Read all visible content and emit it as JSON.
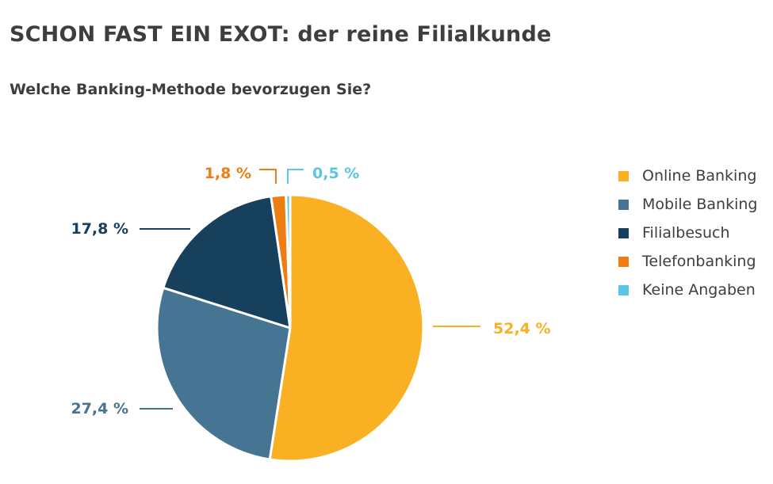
{
  "header": {
    "title": "SCHON FAST EIN EXOT: der reine Filialkunde",
    "subtitle": "Welche Banking-Methode bevorzugen Sie?"
  },
  "chart_data": {
    "type": "pie",
    "title": "SCHON FAST EIN EXOT: der reine Filialkunde",
    "subtitle": "Welche Banking-Methode bevorzugen Sie?",
    "legend_position": "right",
    "slices": [
      {
        "name": "Online Banking",
        "value": 52.4,
        "label": "52,4 %",
        "color": "#F9B022"
      },
      {
        "name": "Mobile Banking",
        "value": 27.4,
        "label": "27,4 %",
        "color": "#457592"
      },
      {
        "name": "Filialbesuch",
        "value": 17.8,
        "label": "17,8 %",
        "color": "#16405C"
      },
      {
        "name": "Telefonbanking",
        "value": 1.8,
        "label": "1,8 %",
        "color": "#EE7D12"
      },
      {
        "name": "Keine Angaben",
        "value": 0.5,
        "label": "0,5 %",
        "color": "#5BC6E8"
      }
    ]
  }
}
